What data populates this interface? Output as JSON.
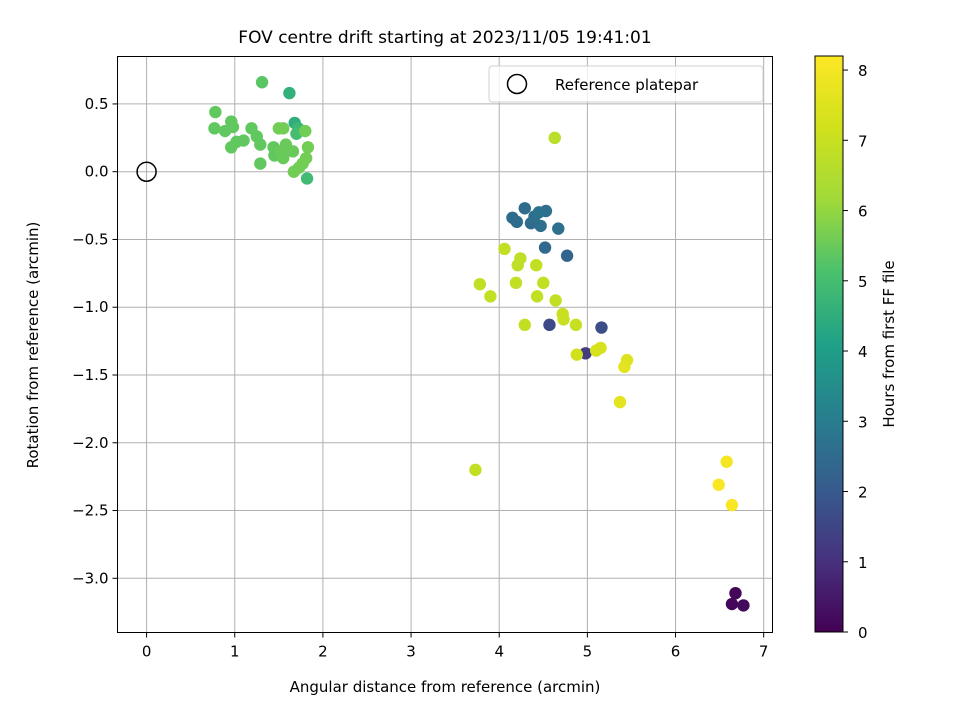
{
  "chart_data": {
    "type": "scatter",
    "title": "FOV centre drift starting at 2023/11/05 19:41:01",
    "xlabel": "Angular distance from reference (arcmin)",
    "ylabel": "Rotation from reference (arcmin)",
    "xlim": [
      -0.33,
      7.1
    ],
    "ylim": [
      -3.4,
      0.85
    ],
    "xticks": [
      0,
      1,
      2,
      3,
      4,
      5,
      6,
      7
    ],
    "xtick_labels": [
      "0",
      "1",
      "2",
      "3",
      "4",
      "5",
      "6",
      "7"
    ],
    "yticks": [
      0.5,
      0.0,
      -0.5,
      -1.0,
      -1.5,
      -2.0,
      -2.5,
      -3.0
    ],
    "ytick_labels": [
      "0.5",
      "0.0",
      "−0.5",
      "−1.0",
      "−1.5",
      "−2.0",
      "−2.5",
      "−3.0"
    ],
    "grid": true,
    "colormap": "viridis",
    "colorbar": {
      "label": "Hours from first FF file",
      "range": [
        0,
        8.2
      ],
      "ticks": [
        0,
        1,
        2,
        3,
        4,
        5,
        6,
        7,
        8
      ],
      "tick_labels": [
        "0",
        "1",
        "2",
        "3",
        "4",
        "5",
        "6",
        "7",
        "8"
      ]
    },
    "legend": {
      "placement": "top-right",
      "entries": [
        {
          "label": "Reference platepar",
          "marker": "open-circle"
        }
      ]
    },
    "reference_point": {
      "x": 0.0,
      "y": 0.0
    },
    "points": [
      {
        "x": 6.68,
        "y": -3.11,
        "t": 0.1
      },
      {
        "x": 6.64,
        "y": -3.19,
        "t": 0.15
      },
      {
        "x": 6.77,
        "y": -3.2,
        "t": 0.2
      },
      {
        "x": 4.98,
        "y": -1.34,
        "t": 1.3
      },
      {
        "x": 4.57,
        "y": -1.13,
        "t": 1.6
      },
      {
        "x": 5.16,
        "y": -1.15,
        "t": 1.7
      },
      {
        "x": 4.77,
        "y": -0.62,
        "t": 2.3
      },
      {
        "x": 4.52,
        "y": -0.56,
        "t": 2.4
      },
      {
        "x": 4.29,
        "y": -0.27,
        "t": 2.5
      },
      {
        "x": 4.15,
        "y": -0.34,
        "t": 2.5
      },
      {
        "x": 4.2,
        "y": -0.37,
        "t": 2.5
      },
      {
        "x": 4.36,
        "y": -0.38,
        "t": 2.5
      },
      {
        "x": 4.4,
        "y": -0.33,
        "t": 2.6
      },
      {
        "x": 4.47,
        "y": -0.4,
        "t": 2.6
      },
      {
        "x": 4.53,
        "y": -0.29,
        "t": 2.6
      },
      {
        "x": 4.67,
        "y": -0.42,
        "t": 2.6
      },
      {
        "x": 4.45,
        "y": -0.3,
        "t": 2.7
      },
      {
        "x": 1.68,
        "y": 0.36,
        "t": 4.5
      },
      {
        "x": 1.62,
        "y": 0.58,
        "t": 4.6
      },
      {
        "x": 1.72,
        "y": 0.32,
        "t": 4.8
      },
      {
        "x": 1.82,
        "y": -0.05,
        "t": 4.9
      },
      {
        "x": 1.7,
        "y": 0.28,
        "t": 5.0
      },
      {
        "x": 1.31,
        "y": 0.66,
        "t": 5.3
      },
      {
        "x": 0.78,
        "y": 0.44,
        "t": 5.4
      },
      {
        "x": 0.77,
        "y": 0.32,
        "t": 5.4
      },
      {
        "x": 0.89,
        "y": 0.3,
        "t": 5.4
      },
      {
        "x": 0.96,
        "y": 0.37,
        "t": 5.4
      },
      {
        "x": 0.98,
        "y": 0.33,
        "t": 5.4
      },
      {
        "x": 0.96,
        "y": 0.18,
        "t": 5.4
      },
      {
        "x": 1.02,
        "y": 0.22,
        "t": 5.4
      },
      {
        "x": 1.1,
        "y": 0.23,
        "t": 5.4
      },
      {
        "x": 1.19,
        "y": 0.32,
        "t": 5.4
      },
      {
        "x": 1.25,
        "y": 0.26,
        "t": 5.4
      },
      {
        "x": 1.29,
        "y": 0.2,
        "t": 5.4
      },
      {
        "x": 1.29,
        "y": 0.06,
        "t": 5.4
      },
      {
        "x": 1.44,
        "y": 0.18,
        "t": 5.4
      },
      {
        "x": 1.45,
        "y": 0.12,
        "t": 5.4
      },
      {
        "x": 1.52,
        "y": 0.15,
        "t": 5.5
      },
      {
        "x": 1.55,
        "y": 0.1,
        "t": 5.5
      },
      {
        "x": 1.58,
        "y": 0.2,
        "t": 5.5
      },
      {
        "x": 1.6,
        "y": 0.16,
        "t": 5.5
      },
      {
        "x": 1.66,
        "y": 0.15,
        "t": 5.5
      },
      {
        "x": 1.55,
        "y": 0.32,
        "t": 5.6
      },
      {
        "x": 1.5,
        "y": 0.32,
        "t": 5.6
      },
      {
        "x": 1.67,
        "y": 0.0,
        "t": 5.6
      },
      {
        "x": 1.73,
        "y": 0.03,
        "t": 5.6
      },
      {
        "x": 1.77,
        "y": 0.06,
        "t": 5.6
      },
      {
        "x": 1.81,
        "y": 0.1,
        "t": 5.6
      },
      {
        "x": 1.8,
        "y": 0.3,
        "t": 5.6
      },
      {
        "x": 1.83,
        "y": 0.18,
        "t": 5.6
      },
      {
        "x": 4.63,
        "y": 0.25,
        "t": 6.7
      },
      {
        "x": 4.21,
        "y": -0.69,
        "t": 6.8
      },
      {
        "x": 4.24,
        "y": -0.64,
        "t": 6.8
      },
      {
        "x": 4.06,
        "y": -0.57,
        "t": 6.9
      },
      {
        "x": 4.42,
        "y": -0.69,
        "t": 6.9
      },
      {
        "x": 3.78,
        "y": -0.83,
        "t": 6.9
      },
      {
        "x": 3.9,
        "y": -0.92,
        "t": 6.9
      },
      {
        "x": 4.19,
        "y": -0.82,
        "t": 6.9
      },
      {
        "x": 4.5,
        "y": -0.82,
        "t": 6.9
      },
      {
        "x": 4.43,
        "y": -0.92,
        "t": 6.9
      },
      {
        "x": 4.64,
        "y": -0.95,
        "t": 6.9
      },
      {
        "x": 4.29,
        "y": -1.13,
        "t": 6.9
      },
      {
        "x": 4.72,
        "y": -1.05,
        "t": 7.0
      },
      {
        "x": 4.73,
        "y": -1.09,
        "t": 7.0
      },
      {
        "x": 4.87,
        "y": -1.13,
        "t": 7.0
      },
      {
        "x": 3.73,
        "y": -2.2,
        "t": 6.9
      },
      {
        "x": 4.88,
        "y": -1.35,
        "t": 7.2
      },
      {
        "x": 5.1,
        "y": -1.32,
        "t": 7.3
      },
      {
        "x": 5.15,
        "y": -1.3,
        "t": 7.3
      },
      {
        "x": 5.45,
        "y": -1.39,
        "t": 7.5
      },
      {
        "x": 5.42,
        "y": -1.44,
        "t": 7.6
      },
      {
        "x": 5.37,
        "y": -1.7,
        "t": 7.6
      },
      {
        "x": 6.58,
        "y": -2.14,
        "t": 8.0
      },
      {
        "x": 6.49,
        "y": -2.31,
        "t": 8.1
      },
      {
        "x": 6.64,
        "y": -2.46,
        "t": 8.1
      }
    ]
  }
}
